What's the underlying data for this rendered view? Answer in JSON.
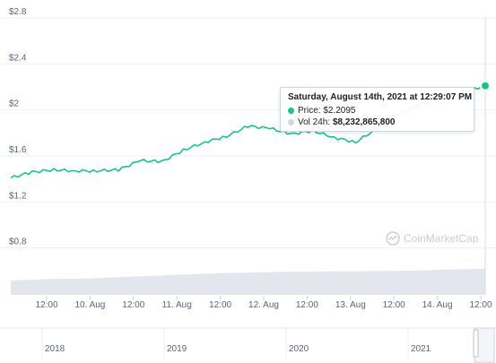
{
  "chart_data": {
    "type": "line",
    "y_axis": {
      "ticks": [
        "$0.8",
        "$1.2",
        "$1.6",
        "$2",
        "$2.4",
        "$2.8"
      ],
      "tick_values": [
        0.8,
        1.2,
        1.6,
        2.0,
        2.4,
        2.8
      ],
      "ylim": [
        0.4,
        2.8
      ]
    },
    "x_axis": {
      "ticks": [
        "12:00",
        "10. Aug",
        "12:00",
        "11. Aug",
        "12:00",
        "12. Aug",
        "12:00",
        "13. Aug",
        "12:00",
        "14. Aug",
        "12:00"
      ]
    },
    "navigator_ticks": [
      "2018",
      "2019",
      "2020",
      "2021"
    ],
    "grid": true,
    "series": [
      {
        "color": "#16c784",
        "x": [
          "2021-08-09 00:00",
          "2021-08-09 06:00",
          "2021-08-09 12:00",
          "2021-08-09 18:00",
          "2021-08-10 00:00",
          "2021-08-10 06:00",
          "2021-08-10 12:00",
          "2021-08-10 18:00",
          "2021-08-11 00:00",
          "2021-08-11 06:00",
          "2021-08-11 12:00",
          "2021-08-11 18:00",
          "2021-08-12 00:00",
          "2021-08-12 06:00",
          "2021-08-12 12:00",
          "2021-08-12 18:00",
          "2021-08-13 00:00",
          "2021-08-13 06:00",
          "2021-08-13 12:00",
          "2021-08-13 18:00",
          "2021-08-14 00:00",
          "2021-08-14 06:00",
          "2021-08-14 12:29"
        ],
        "values": [
          1.41,
          1.46,
          1.48,
          1.47,
          1.47,
          1.48,
          1.56,
          1.55,
          1.65,
          1.72,
          1.77,
          1.86,
          1.84,
          1.79,
          1.82,
          1.76,
          1.72,
          1.84,
          1.96,
          2.05,
          2.09,
          2.16,
          2.21
        ]
      }
    ],
    "volume_series": {
      "values": [
        0.34,
        0.36,
        0.38,
        0.38,
        0.4,
        0.42,
        0.44,
        0.46,
        0.48,
        0.5,
        0.52,
        0.53,
        0.54,
        0.55,
        0.55,
        0.56,
        0.56,
        0.57,
        0.57,
        0.58,
        0.6,
        0.61,
        0.62
      ]
    },
    "tooltip": {
      "title": "Saturday, August 14th, 2021 at 12:29:07 PM",
      "price_label": "Price:",
      "price_value": "$2.2095",
      "volume_label": "Vol 24h:",
      "volume_value": "$8,232,865,800"
    },
    "watermark": "CoinMarketCap"
  },
  "colors": {
    "line": "#16c784",
    "volume": "#e3e6ec",
    "grid": "#eef1f5",
    "text": "#58667e",
    "volume_dot": "#cfd6e4"
  }
}
